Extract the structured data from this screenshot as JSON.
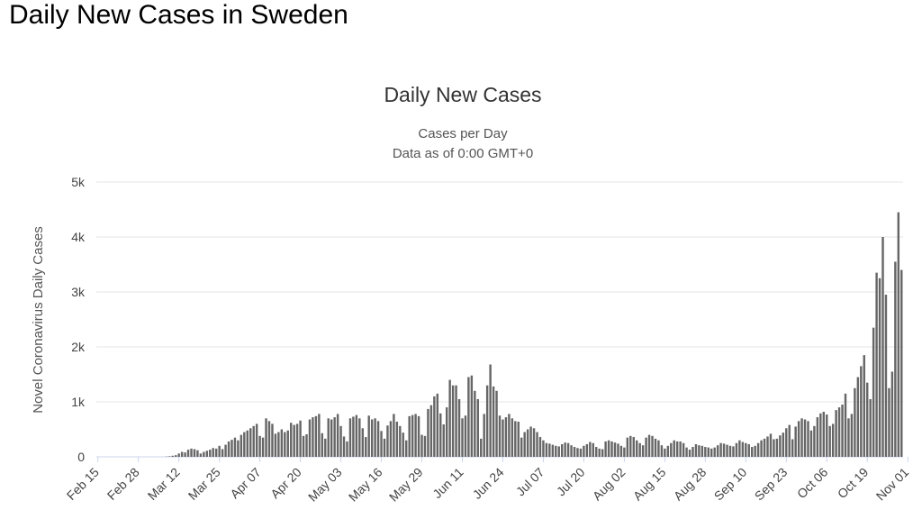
{
  "page": {
    "title": "Daily New Cases in Sweden"
  },
  "chart_data": {
    "type": "bar",
    "title": "Daily New Cases",
    "subtitle": "Cases per Day",
    "subtitle2": "Data as of 0:00 GMT+0",
    "ylabel": "Novel Coronavirus Daily Cases",
    "xlabel": "",
    "ylim": [
      0,
      5000
    ],
    "yticks": [
      0,
      1000,
      2000,
      3000,
      4000,
      5000
    ],
    "ytick_labels": [
      "0",
      "1k",
      "2k",
      "3k",
      "4k",
      "5k"
    ],
    "grid": true,
    "color": "#666666",
    "xticks": [
      {
        "label": "Feb 15",
        "index": 0
      },
      {
        "label": "Feb 28",
        "index": 13
      },
      {
        "label": "Mar 12",
        "index": 26
      },
      {
        "label": "Mar 25",
        "index": 39
      },
      {
        "label": "Apr 07",
        "index": 52
      },
      {
        "label": "Apr 20",
        "index": 65
      },
      {
        "label": "May 03",
        "index": 78
      },
      {
        "label": "May 16",
        "index": 91
      },
      {
        "label": "May 29",
        "index": 104
      },
      {
        "label": "Jun 11",
        "index": 117
      },
      {
        "label": "Jun 24",
        "index": 130
      },
      {
        "label": "Jul 07",
        "index": 143
      },
      {
        "label": "Jul 20",
        "index": 156
      },
      {
        "label": "Aug 02",
        "index": 169
      },
      {
        "label": "Aug 15",
        "index": 182
      },
      {
        "label": "Aug 28",
        "index": 195
      },
      {
        "label": "Sep 10",
        "index": 208
      },
      {
        "label": "Sep 23",
        "index": 221
      },
      {
        "label": "Oct 06",
        "index": 234
      },
      {
        "label": "Oct 19",
        "index": 247
      },
      {
        "label": "Nov 01",
        "index": 260
      }
    ],
    "start_date": "Feb 15",
    "values": [
      0,
      0,
      0,
      0,
      0,
      0,
      0,
      0,
      0,
      0,
      0,
      0,
      0,
      0,
      0,
      0,
      0,
      0,
      0,
      0,
      0,
      0,
      5,
      10,
      20,
      30,
      60,
      90,
      80,
      130,
      150,
      140,
      120,
      60,
      90,
      110,
      130,
      160,
      150,
      200,
      140,
      220,
      280,
      310,
      350,
      300,
      400,
      450,
      480,
      520,
      560,
      600,
      380,
      350,
      700,
      650,
      600,
      420,
      450,
      500,
      450,
      480,
      620,
      580,
      600,
      660,
      380,
      410,
      680,
      720,
      740,
      780,
      430,
      330,
      700,
      680,
      720,
      780,
      560,
      370,
      280,
      700,
      730,
      760,
      700,
      520,
      360,
      750,
      680,
      700,
      650,
      470,
      330,
      570,
      650,
      780,
      640,
      560,
      440,
      300,
      740,
      760,
      780,
      740,
      400,
      380,
      870,
      940,
      1100,
      1150,
      790,
      590,
      900,
      1400,
      1300,
      1300,
      1050,
      700,
      750,
      1450,
      1480,
      1200,
      1050,
      330,
      780,
      1300,
      1680,
      1280,
      1200,
      750,
      680,
      720,
      780,
      700,
      650,
      640,
      350,
      450,
      500,
      550,
      520,
      450,
      360,
      300,
      250,
      240,
      220,
      200,
      190,
      230,
      260,
      250,
      210,
      180,
      160,
      150,
      200,
      230,
      270,
      250,
      180,
      150,
      140,
      280,
      300,
      280,
      260,
      240,
      200,
      170,
      350,
      380,
      360,
      300,
      250,
      210,
      350,
      400,
      380,
      330,
      300,
      210,
      150,
      200,
      250,
      300,
      280,
      280,
      250,
      170,
      130,
      180,
      230,
      210,
      200,
      180,
      170,
      150,
      170,
      210,
      250,
      240,
      220,
      200,
      190,
      250,
      300,
      270,
      250,
      230,
      180,
      200,
      250,
      300,
      330,
      370,
      420,
      320,
      330,
      390,
      440,
      520,
      580,
      320,
      550,
      650,
      700,
      680,
      650,
      480,
      560,
      720,
      790,
      820,
      770,
      560,
      600,
      850,
      900,
      950,
      1150,
      700,
      780,
      1250,
      1450,
      1650,
      1850,
      1350,
      1050,
      2350,
      3350,
      3250,
      4000,
      2950,
      1250,
      1550,
      3550,
      4450,
      3400
    ]
  }
}
